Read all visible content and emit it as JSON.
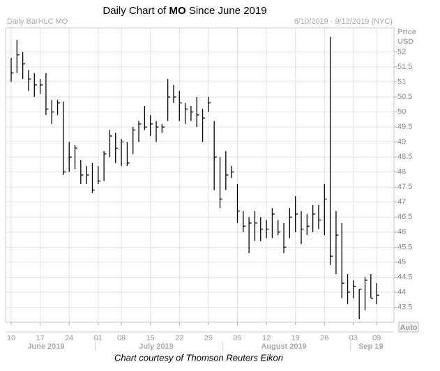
{
  "chart_data": {
    "type": "hlc",
    "title": [
      "Daily Chart of",
      "MO",
      "Since June 2019"
    ],
    "header_left": "Daily BarHLC MO",
    "header_right": "6/10/2019 - 9/12/2019 (NYC)",
    "y_axis_label": [
      "Price",
      "USD"
    ],
    "button": "Auto",
    "footer": "Chart courtesy of Thomson Reuters Eikon",
    "color": "#000000",
    "grid": true,
    "categories": [
      "2019-06-10",
      "2019-06-11",
      "2019-06-12",
      "2019-06-13",
      "2019-06-14",
      "2019-06-17",
      "2019-06-18",
      "2019-06-19",
      "2019-06-20",
      "2019-06-21",
      "2019-06-24",
      "2019-06-25",
      "2019-06-26",
      "2019-06-27",
      "2019-06-28",
      "2019-07-01",
      "2019-07-02",
      "2019-07-03",
      "2019-07-05",
      "2019-07-08",
      "2019-07-09",
      "2019-07-10",
      "2019-07-11",
      "2019-07-12",
      "2019-07-15",
      "2019-07-16",
      "2019-07-17",
      "2019-07-18",
      "2019-07-19",
      "2019-07-22",
      "2019-07-23",
      "2019-07-24",
      "2019-07-25",
      "2019-07-26",
      "2019-07-29",
      "2019-07-30",
      "2019-07-31",
      "2019-08-01",
      "2019-08-02",
      "2019-08-05",
      "2019-08-06",
      "2019-08-07",
      "2019-08-08",
      "2019-08-09",
      "2019-08-12",
      "2019-08-13",
      "2019-08-14",
      "2019-08-15",
      "2019-08-16",
      "2019-08-19",
      "2019-08-20",
      "2019-08-21",
      "2019-08-22",
      "2019-08-23",
      "2019-08-26",
      "2019-08-27",
      "2019-08-28",
      "2019-08-29",
      "2019-08-30",
      "2019-09-03",
      "2019-09-04",
      "2019-09-05",
      "2019-09-06",
      "2019-09-09"
    ],
    "high": [
      51.8,
      52.4,
      52.0,
      51.4,
      51.3,
      51.1,
      51.3,
      50.4,
      50.4,
      50.35,
      49.0,
      48.9,
      48.4,
      48.2,
      48.3,
      48.2,
      48.7,
      49.4,
      49.3,
      49.1,
      49.0,
      49.5,
      49.7,
      50.2,
      49.9,
      49.7,
      49.6,
      51.1,
      50.9,
      50.7,
      50.3,
      50.2,
      50.5,
      50.1,
      50.5,
      49.7,
      48.5,
      48.7,
      48.2,
      47.6,
      46.7,
      46.5,
      46.7,
      46.5,
      46.4,
      46.8,
      46.4,
      46.3,
      46.8,
      47.2,
      46.7,
      46.6,
      46.9,
      46.9,
      47.6,
      52.5,
      46.7,
      46.3,
      44.6,
      44.4,
      44.1,
      44.5,
      44.6,
      44.3
    ],
    "low": [
      51.0,
      51.3,
      51.1,
      50.7,
      50.5,
      50.6,
      49.9,
      49.6,
      49.9,
      47.9,
      48.0,
      48.1,
      47.6,
      47.6,
      47.3,
      47.6,
      47.7,
      48.5,
      48.3,
      48.2,
      48.2,
      48.6,
      49.0,
      49.4,
      49.2,
      49.0,
      49.3,
      49.7,
      50.3,
      49.7,
      49.6,
      49.7,
      49.5,
      49.0,
      50.0,
      47.4,
      46.8,
      47.4,
      47.8,
      46.3,
      46.0,
      45.3,
      45.7,
      45.7,
      45.8,
      45.8,
      45.9,
      45.3,
      45.8,
      46.0,
      45.6,
      45.9,
      46.0,
      46.1,
      45.9,
      44.9,
      44.6,
      43.8,
      43.6,
      43.8,
      43.1,
      43.4,
      43.8,
      43.6
    ],
    "close": [
      51.3,
      51.9,
      51.6,
      51.1,
      50.9,
      50.9,
      50.1,
      50.0,
      50.3,
      48.0,
      48.5,
      48.8,
      47.9,
      47.9,
      47.4,
      47.7,
      48.6,
      49.2,
      48.8,
      49.0,
      48.3,
      49.4,
      49.6,
      49.5,
      49.6,
      49.5,
      49.5,
      50.5,
      50.5,
      50.3,
      50.1,
      50.0,
      49.9,
      49.8,
      50.3,
      48.5,
      47.1,
      47.9,
      48.0,
      46.7,
      46.2,
      46.3,
      46.3,
      46.1,
      46.1,
      46.6,
      46.0,
      45.5,
      46.5,
      46.6,
      46.1,
      46.2,
      46.6,
      46.4,
      47.1,
      45.2,
      45.9,
      44.3,
      44.0,
      44.2,
      44.1,
      44.4,
      43.8,
      43.9
    ],
    "ylim": [
      43,
      52.8
    ],
    "yticks": [
      43.5,
      44,
      44.5,
      45,
      45.5,
      46,
      46.5,
      47,
      47.5,
      48,
      48.5,
      49,
      49.5,
      50,
      50.5,
      51,
      51.5,
      52
    ],
    "xticks": [
      {
        "value": "2019-06-10",
        "label": "10"
      },
      {
        "value": "2019-06-17",
        "label": "17"
      },
      {
        "value": "2019-06-24",
        "label": "24"
      },
      {
        "value": "2019-07-01",
        "label": "01"
      },
      {
        "value": "2019-07-08",
        "label": "08"
      },
      {
        "value": "2019-07-15",
        "label": "15"
      },
      {
        "value": "2019-07-22",
        "label": "22"
      },
      {
        "value": "2019-07-29",
        "label": "29"
      },
      {
        "value": "2019-08-05",
        "label": "05"
      },
      {
        "value": "2019-08-12",
        "label": "12"
      },
      {
        "value": "2019-08-19",
        "label": "19"
      },
      {
        "value": "2019-08-26",
        "label": "26"
      },
      {
        "value": "2019-09-03",
        "label": "03"
      },
      {
        "value": "2019-09-09",
        "label": "09"
      }
    ],
    "month_labels": [
      {
        "value": "2019-06-18",
        "label": "June 2019"
      },
      {
        "value": "2019-07-16",
        "label": "July 2019"
      },
      {
        "value": "2019-08-15",
        "label": "August 2019"
      },
      {
        "value": "2019-09-06",
        "label": "Sep 19"
      }
    ]
  }
}
